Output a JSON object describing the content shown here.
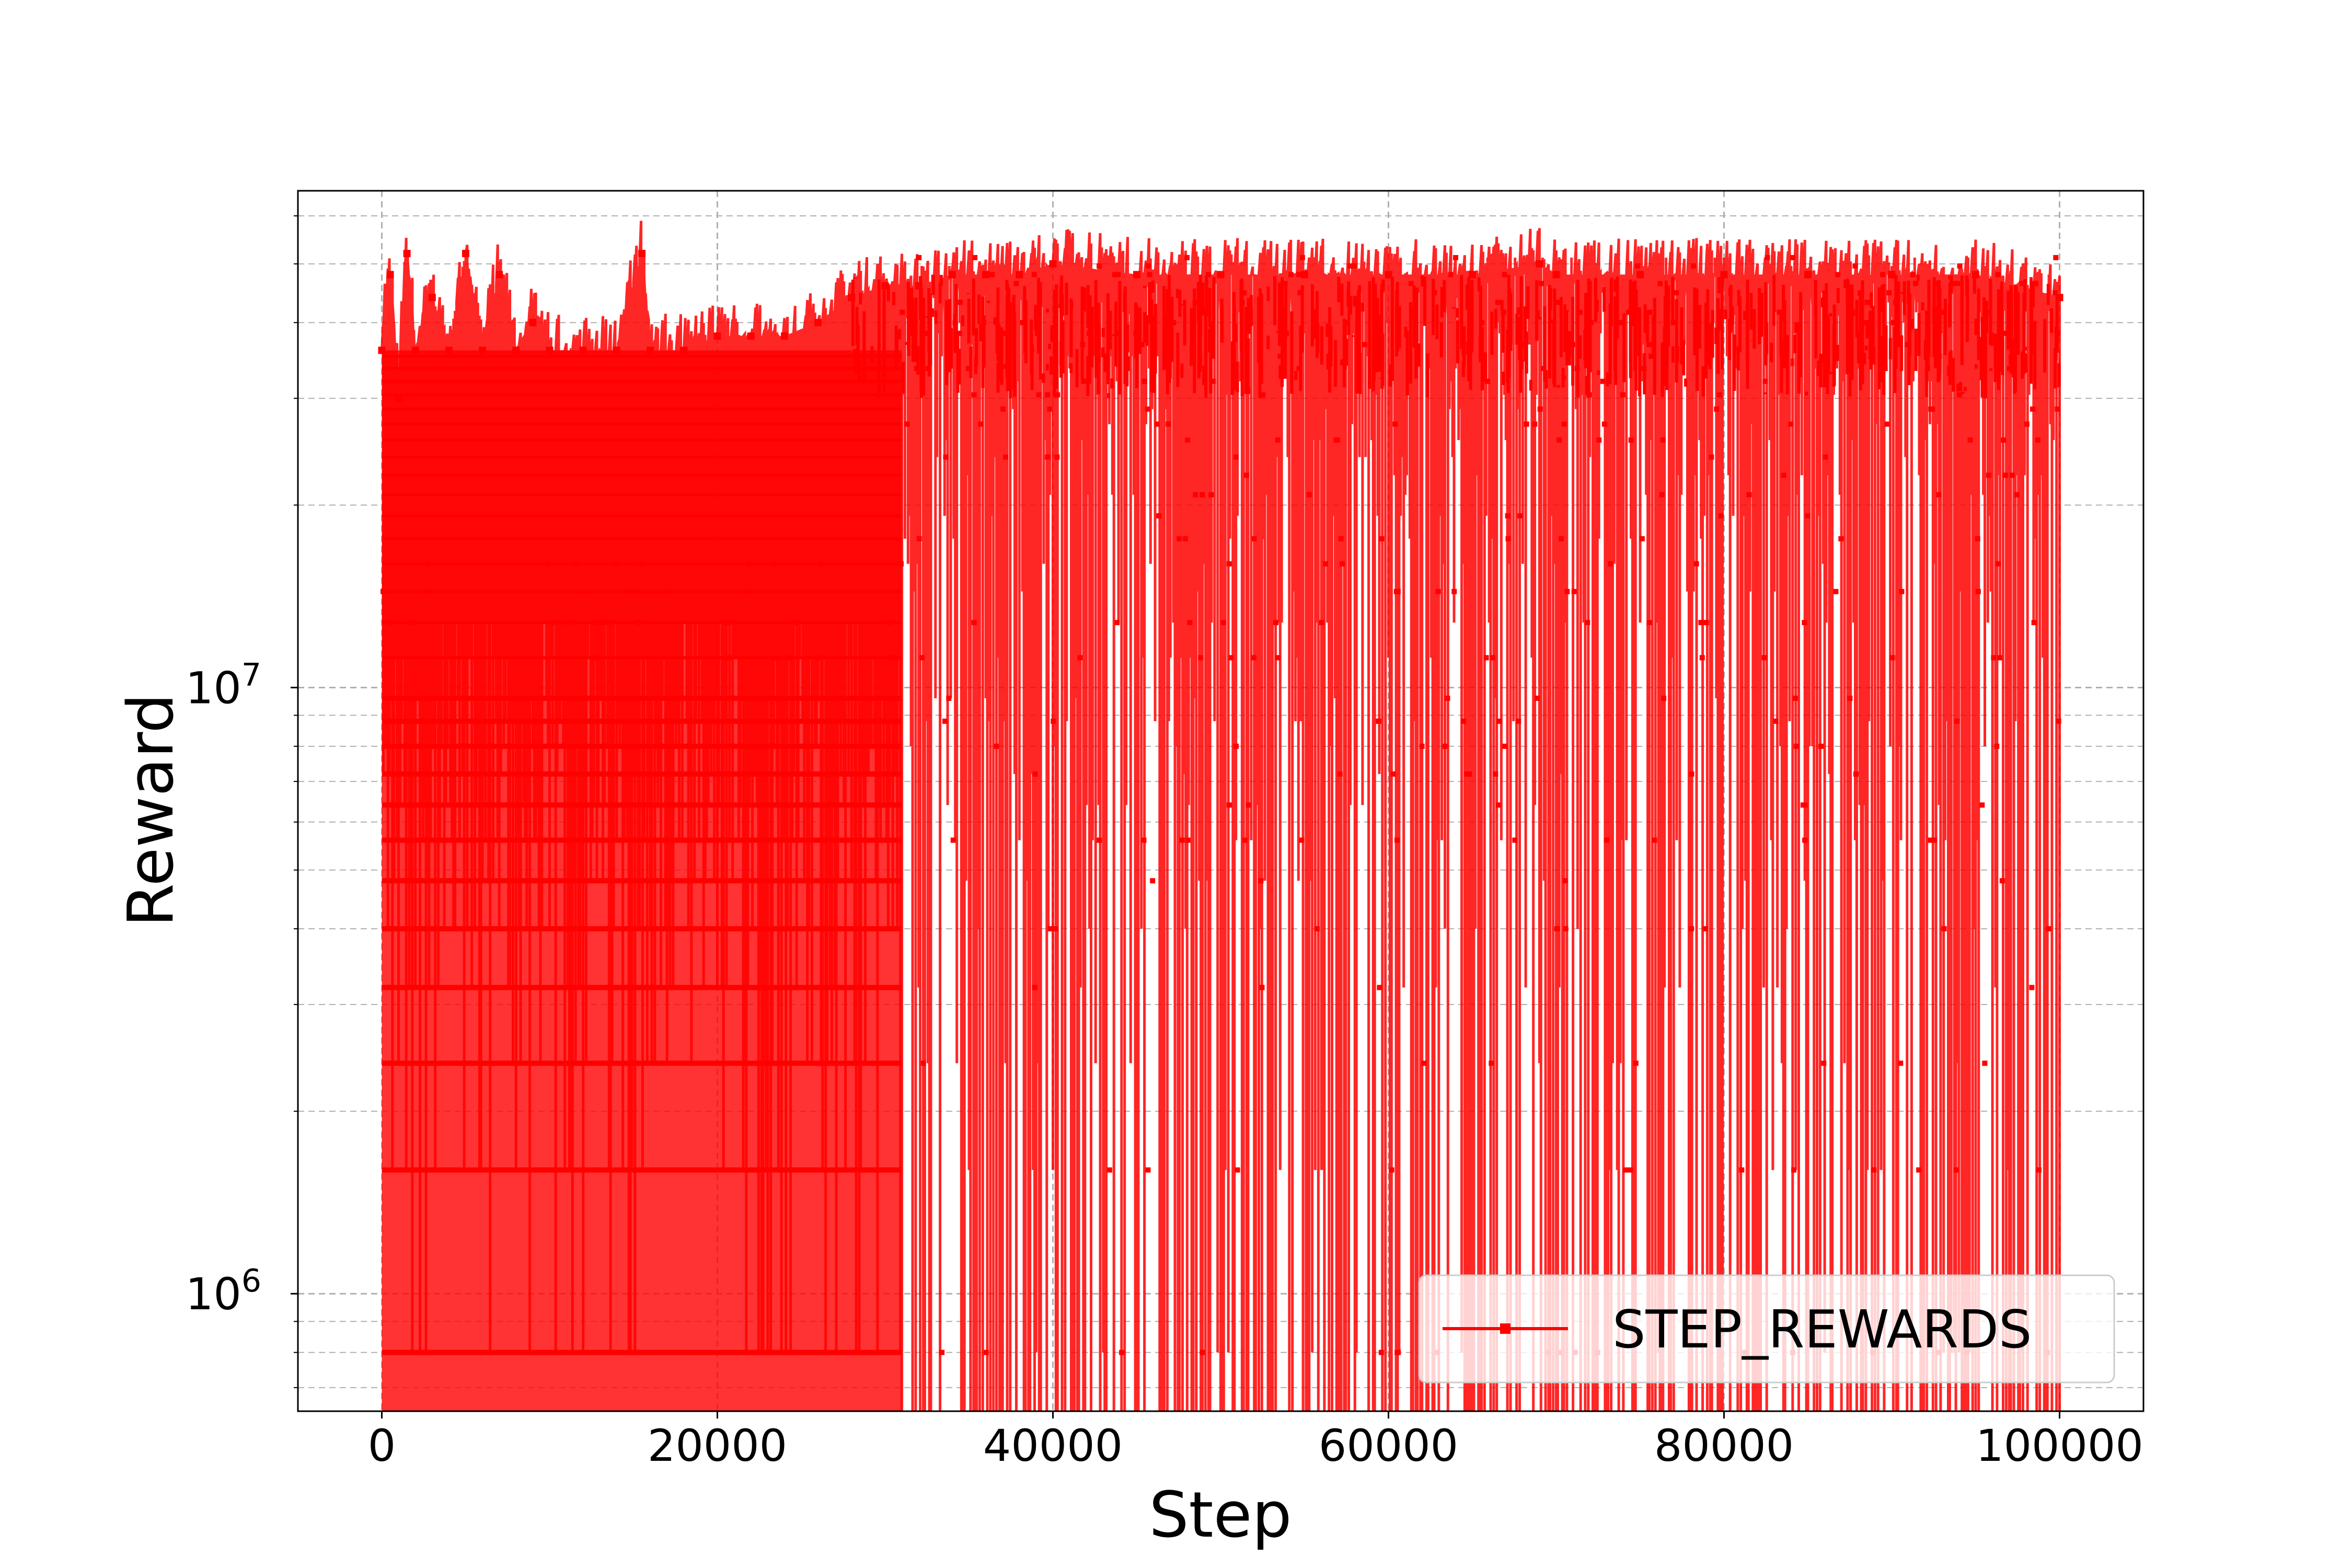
{
  "chart_data": {
    "type": "line",
    "title": "",
    "xlabel": "Step",
    "ylabel": "Reward",
    "x_scale": "linear",
    "y_scale": "log",
    "xlim": [
      -5000,
      105000
    ],
    "ylim": [
      640000,
      66000000
    ],
    "x_ticks": [
      {
        "value": 0,
        "label": "0"
      },
      {
        "value": 20000,
        "label": "20000"
      },
      {
        "value": 40000,
        "label": "40000"
      },
      {
        "value": 60000,
        "label": "60000"
      },
      {
        "value": 80000,
        "label": "80000"
      },
      {
        "value": 100000,
        "label": "100000"
      }
    ],
    "y_ticks": [
      {
        "value": 1000000,
        "base": "10",
        "exp": "6"
      },
      {
        "value": 10000000,
        "base": "10",
        "exp": "7"
      }
    ],
    "grid": true,
    "legend_position": "bottom-right",
    "series": [
      {
        "name": "STEP_REWARDS",
        "color": "#ff0000",
        "marker": "square",
        "x_range": [
          0,
          100000
        ],
        "levels": [
          800000,
          1600000,
          2400000,
          3200000,
          4000000,
          4800000,
          5600000,
          6400000,
          7200000,
          8000000,
          8800000,
          9600000,
          11200000,
          12800000,
          14400000,
          16000000,
          17600000,
          19200000,
          20800000,
          22400000,
          24000000,
          25600000,
          27200000,
          28800000,
          30400000,
          32000000,
          33600000,
          35200000,
          36800000,
          38400000,
          40000000,
          41600000,
          43200000,
          44800000,
          46400000,
          48000000,
          49600000,
          51200000
        ],
        "samples": [
          [
            0,
            36000000
          ],
          [
            500,
            48000000
          ],
          [
            1000,
            30000000
          ],
          [
            1500,
            52000000
          ],
          [
            2000,
            36000000
          ],
          [
            3000,
            44000000
          ],
          [
            4000,
            36000000
          ],
          [
            5000,
            52000000
          ],
          [
            6000,
            36000000
          ],
          [
            7000,
            48000000
          ],
          [
            8000,
            36000000
          ],
          [
            9000,
            40000000
          ],
          [
            10000,
            36000000
          ],
          [
            12000,
            36000000
          ],
          [
            14000,
            36000000
          ],
          [
            15500,
            52000000
          ],
          [
            16000,
            36000000
          ],
          [
            18000,
            36000000
          ],
          [
            20000,
            38000000
          ],
          [
            22000,
            38000000
          ],
          [
            24000,
            38000000
          ],
          [
            26000,
            40000000
          ],
          [
            28000,
            44000000
          ],
          [
            30000,
            46000000
          ],
          [
            32000,
            46000000
          ],
          [
            34000,
            48000000
          ],
          [
            36000,
            48000000
          ],
          [
            38000,
            48000000
          ],
          [
            40000,
            50000000
          ],
          [
            45000,
            48000000
          ],
          [
            50000,
            48000000
          ],
          [
            55000,
            48000000
          ],
          [
            60000,
            48000000
          ],
          [
            65000,
            48000000
          ],
          [
            69000,
            50000000
          ],
          [
            70000,
            48000000
          ],
          [
            75000,
            48000000
          ],
          [
            80000,
            48000000
          ],
          [
            85000,
            48000000
          ],
          [
            90000,
            48000000
          ],
          [
            95000,
            48000000
          ],
          [
            100000,
            44000000
          ]
        ]
      }
    ]
  }
}
